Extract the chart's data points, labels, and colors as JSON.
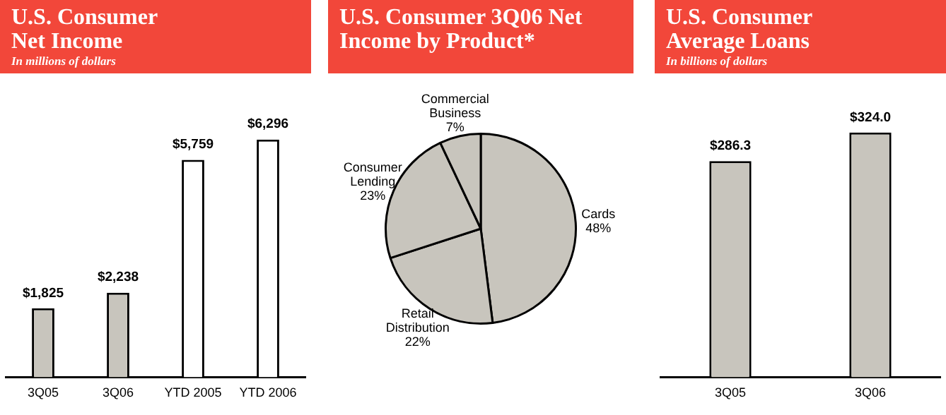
{
  "chart_data": [
    {
      "type": "bar",
      "title": "U.S. Consumer Net Income",
      "subtitle": "In millions of dollars",
      "categories": [
        "3Q05",
        "3Q06",
        "YTD 2005",
        "YTD 2006"
      ],
      "values": [
        1825,
        2238,
        5759,
        6296
      ],
      "colors": [
        "#c8c5bd",
        "#c8c5bd",
        "#ffffff",
        "#ffffff"
      ],
      "value_labels": [
        "$1,825",
        "$2,238",
        "$5,759",
        "$6,296"
      ]
    },
    {
      "type": "pie",
      "title": "U.S. Consumer 3Q06 Net Income by Product*",
      "categories": [
        "Cards",
        "Retail Distribution",
        "Consumer Lending",
        "Commercial Business"
      ],
      "values": [
        48,
        22,
        23,
        7
      ],
      "colors": [
        "#c8c5bd",
        "#c8c5bd",
        "#c8c5bd",
        "#c8c5bd"
      ],
      "value_labels": [
        "48%",
        "22%",
        "23%",
        "7%"
      ]
    },
    {
      "type": "bar",
      "title": "U.S. Consumer Average Loans",
      "subtitle": "In billions of dollars",
      "categories": [
        "3Q05",
        "3Q06"
      ],
      "values": [
        286.3,
        324.0
      ],
      "colors": [
        "#c8c5bd",
        "#c8c5bd"
      ],
      "value_labels": [
        "$286.3",
        "$324.0"
      ]
    }
  ]
}
